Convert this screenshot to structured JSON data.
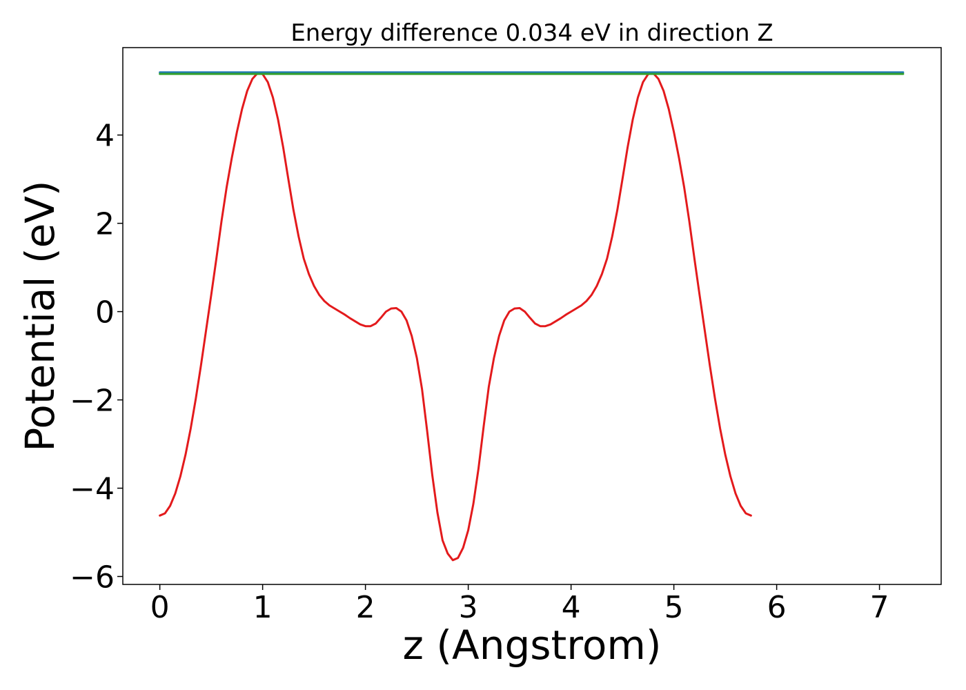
{
  "chart_data": {
    "type": "line",
    "title": "Energy difference 0.034 eV in direction Z",
    "xlabel": "z (Angstrom)",
    "ylabel": "Potential (eV)",
    "xlim": [
      -0.36,
      7.6
    ],
    "ylim": [
      -6.18,
      5.98
    ],
    "xticks": [
      0,
      1,
      2,
      3,
      4,
      5,
      6,
      7
    ],
    "yticks": [
      -6,
      -4,
      -2,
      0,
      2,
      4
    ],
    "xtick_labels": [
      "0",
      "1",
      "2",
      "3",
      "4",
      "5",
      "6",
      "7"
    ],
    "ytick_labels": [
      "−6",
      "−4",
      "−2",
      "0",
      "2",
      "4"
    ],
    "grid": false,
    "series": [
      {
        "color": "#e31a1c",
        "points": [
          [
            0.0,
            -4.62
          ],
          [
            0.05,
            -4.57
          ],
          [
            0.1,
            -4.4
          ],
          [
            0.15,
            -4.12
          ],
          [
            0.2,
            -3.73
          ],
          [
            0.25,
            -3.24
          ],
          [
            0.3,
            -2.65
          ],
          [
            0.35,
            -1.97
          ],
          [
            0.4,
            -1.22
          ],
          [
            0.45,
            -0.42
          ],
          [
            0.5,
            0.38
          ],
          [
            0.55,
            1.2
          ],
          [
            0.6,
            2.05
          ],
          [
            0.65,
            2.82
          ],
          [
            0.7,
            3.48
          ],
          [
            0.75,
            4.07
          ],
          [
            0.8,
            4.59
          ],
          [
            0.85,
            5.0
          ],
          [
            0.9,
            5.27
          ],
          [
            0.95,
            5.4
          ],
          [
            1.0,
            5.38
          ],
          [
            1.05,
            5.2
          ],
          [
            1.1,
            4.85
          ],
          [
            1.15,
            4.35
          ],
          [
            1.2,
            3.72
          ],
          [
            1.25,
            3.0
          ],
          [
            1.3,
            2.3
          ],
          [
            1.35,
            1.7
          ],
          [
            1.4,
            1.2
          ],
          [
            1.45,
            0.85
          ],
          [
            1.5,
            0.58
          ],
          [
            1.55,
            0.38
          ],
          [
            1.6,
            0.24
          ],
          [
            1.65,
            0.14
          ],
          [
            1.7,
            0.07
          ],
          [
            1.75,
            0.0
          ],
          [
            1.8,
            -0.07
          ],
          [
            1.85,
            -0.15
          ],
          [
            1.9,
            -0.22
          ],
          [
            1.95,
            -0.29
          ],
          [
            2.0,
            -0.33
          ],
          [
            2.05,
            -0.33
          ],
          [
            2.1,
            -0.27
          ],
          [
            2.15,
            -0.14
          ],
          [
            2.2,
            0.0
          ],
          [
            2.25,
            0.07
          ],
          [
            2.3,
            0.08
          ],
          [
            2.35,
            0.0
          ],
          [
            2.4,
            -0.2
          ],
          [
            2.45,
            -0.55
          ],
          [
            2.5,
            -1.05
          ],
          [
            2.55,
            -1.75
          ],
          [
            2.6,
            -2.7
          ],
          [
            2.65,
            -3.7
          ],
          [
            2.7,
            -4.55
          ],
          [
            2.75,
            -5.18
          ],
          [
            2.8,
            -5.48
          ],
          [
            2.85,
            -5.63
          ],
          [
            2.9,
            -5.58
          ],
          [
            2.95,
            -5.35
          ],
          [
            3.0,
            -4.95
          ],
          [
            3.05,
            -4.35
          ],
          [
            3.1,
            -3.55
          ],
          [
            3.15,
            -2.6
          ],
          [
            3.2,
            -1.7
          ],
          [
            3.25,
            -1.05
          ],
          [
            3.3,
            -0.55
          ],
          [
            3.35,
            -0.2
          ],
          [
            3.4,
            0.0
          ],
          [
            3.45,
            0.07
          ],
          [
            3.5,
            0.08
          ],
          [
            3.55,
            0.0
          ],
          [
            3.6,
            -0.14
          ],
          [
            3.65,
            -0.27
          ],
          [
            3.7,
            -0.33
          ],
          [
            3.75,
            -0.33
          ],
          [
            3.8,
            -0.29
          ],
          [
            3.85,
            -0.22
          ],
          [
            3.9,
            -0.15
          ],
          [
            3.95,
            -0.07
          ],
          [
            4.0,
            0.0
          ],
          [
            4.05,
            0.07
          ],
          [
            4.1,
            0.14
          ],
          [
            4.15,
            0.24
          ],
          [
            4.2,
            0.38
          ],
          [
            4.25,
            0.58
          ],
          [
            4.3,
            0.85
          ],
          [
            4.35,
            1.2
          ],
          [
            4.4,
            1.7
          ],
          [
            4.45,
            2.3
          ],
          [
            4.5,
            3.0
          ],
          [
            4.55,
            3.72
          ],
          [
            4.6,
            4.35
          ],
          [
            4.65,
            4.85
          ],
          [
            4.7,
            5.2
          ],
          [
            4.75,
            5.38
          ],
          [
            4.8,
            5.4
          ],
          [
            4.85,
            5.27
          ],
          [
            4.9,
            5.0
          ],
          [
            4.95,
            4.59
          ],
          [
            5.0,
            4.07
          ],
          [
            5.05,
            3.48
          ],
          [
            5.1,
            2.82
          ],
          [
            5.15,
            2.05
          ],
          [
            5.2,
            1.2
          ],
          [
            5.25,
            0.38
          ],
          [
            5.3,
            -0.42
          ],
          [
            5.35,
            -1.22
          ],
          [
            5.4,
            -1.97
          ],
          [
            5.45,
            -2.65
          ],
          [
            5.5,
            -3.24
          ],
          [
            5.55,
            -3.73
          ],
          [
            5.6,
            -4.12
          ],
          [
            5.65,
            -4.4
          ],
          [
            5.7,
            -4.57
          ],
          [
            5.75,
            -4.62
          ]
        ]
      },
      {
        "color": "#1f78b4",
        "points": [
          [
            0.0,
            5.42
          ],
          [
            7.23,
            5.42
          ]
        ]
      },
      {
        "color": "#33a02c",
        "points": [
          [
            0.0,
            5.385
          ],
          [
            7.23,
            5.385
          ]
        ]
      }
    ]
  },
  "colors": {
    "background": "#ffffff",
    "axes": "#000000"
  }
}
